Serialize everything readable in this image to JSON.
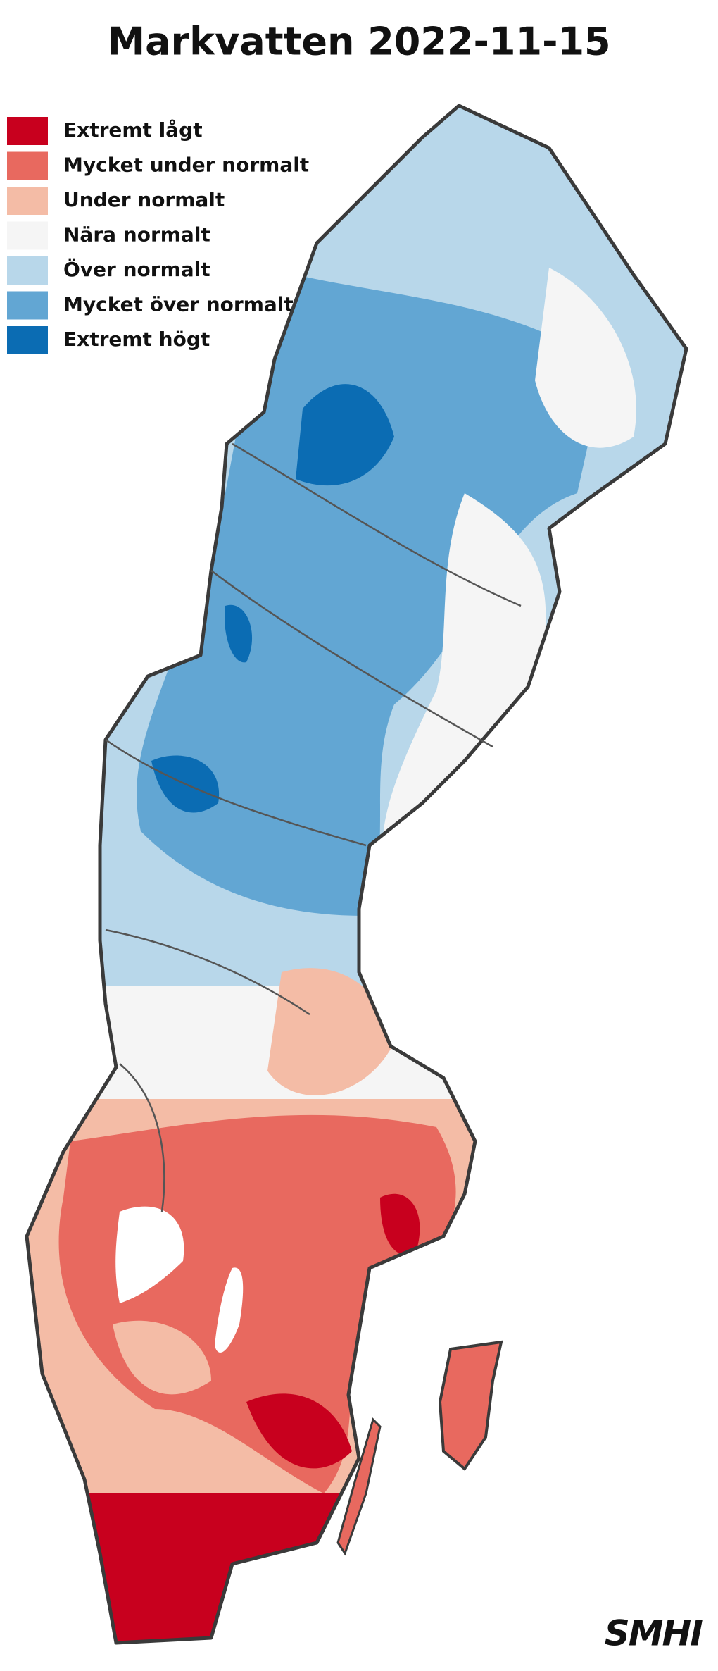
{
  "title": "Markvatten 2022-11-15",
  "legend": [
    {
      "label": "Extremt lågt",
      "color": "#c8001e"
    },
    {
      "label": "Mycket under normalt",
      "color": "#e8695f"
    },
    {
      "label": "Under normalt",
      "color": "#f4bca6"
    },
    {
      "label": "Nära normalt",
      "color": "#f5f5f5"
    },
    {
      "label": "Över normalt",
      "color": "#b8d7ea"
    },
    {
      "label": "Mycket över normalt",
      "color": "#62a6d3"
    },
    {
      "label": "Extremt högt",
      "color": "#0b6cb3"
    }
  ],
  "logo": "SMHI"
}
